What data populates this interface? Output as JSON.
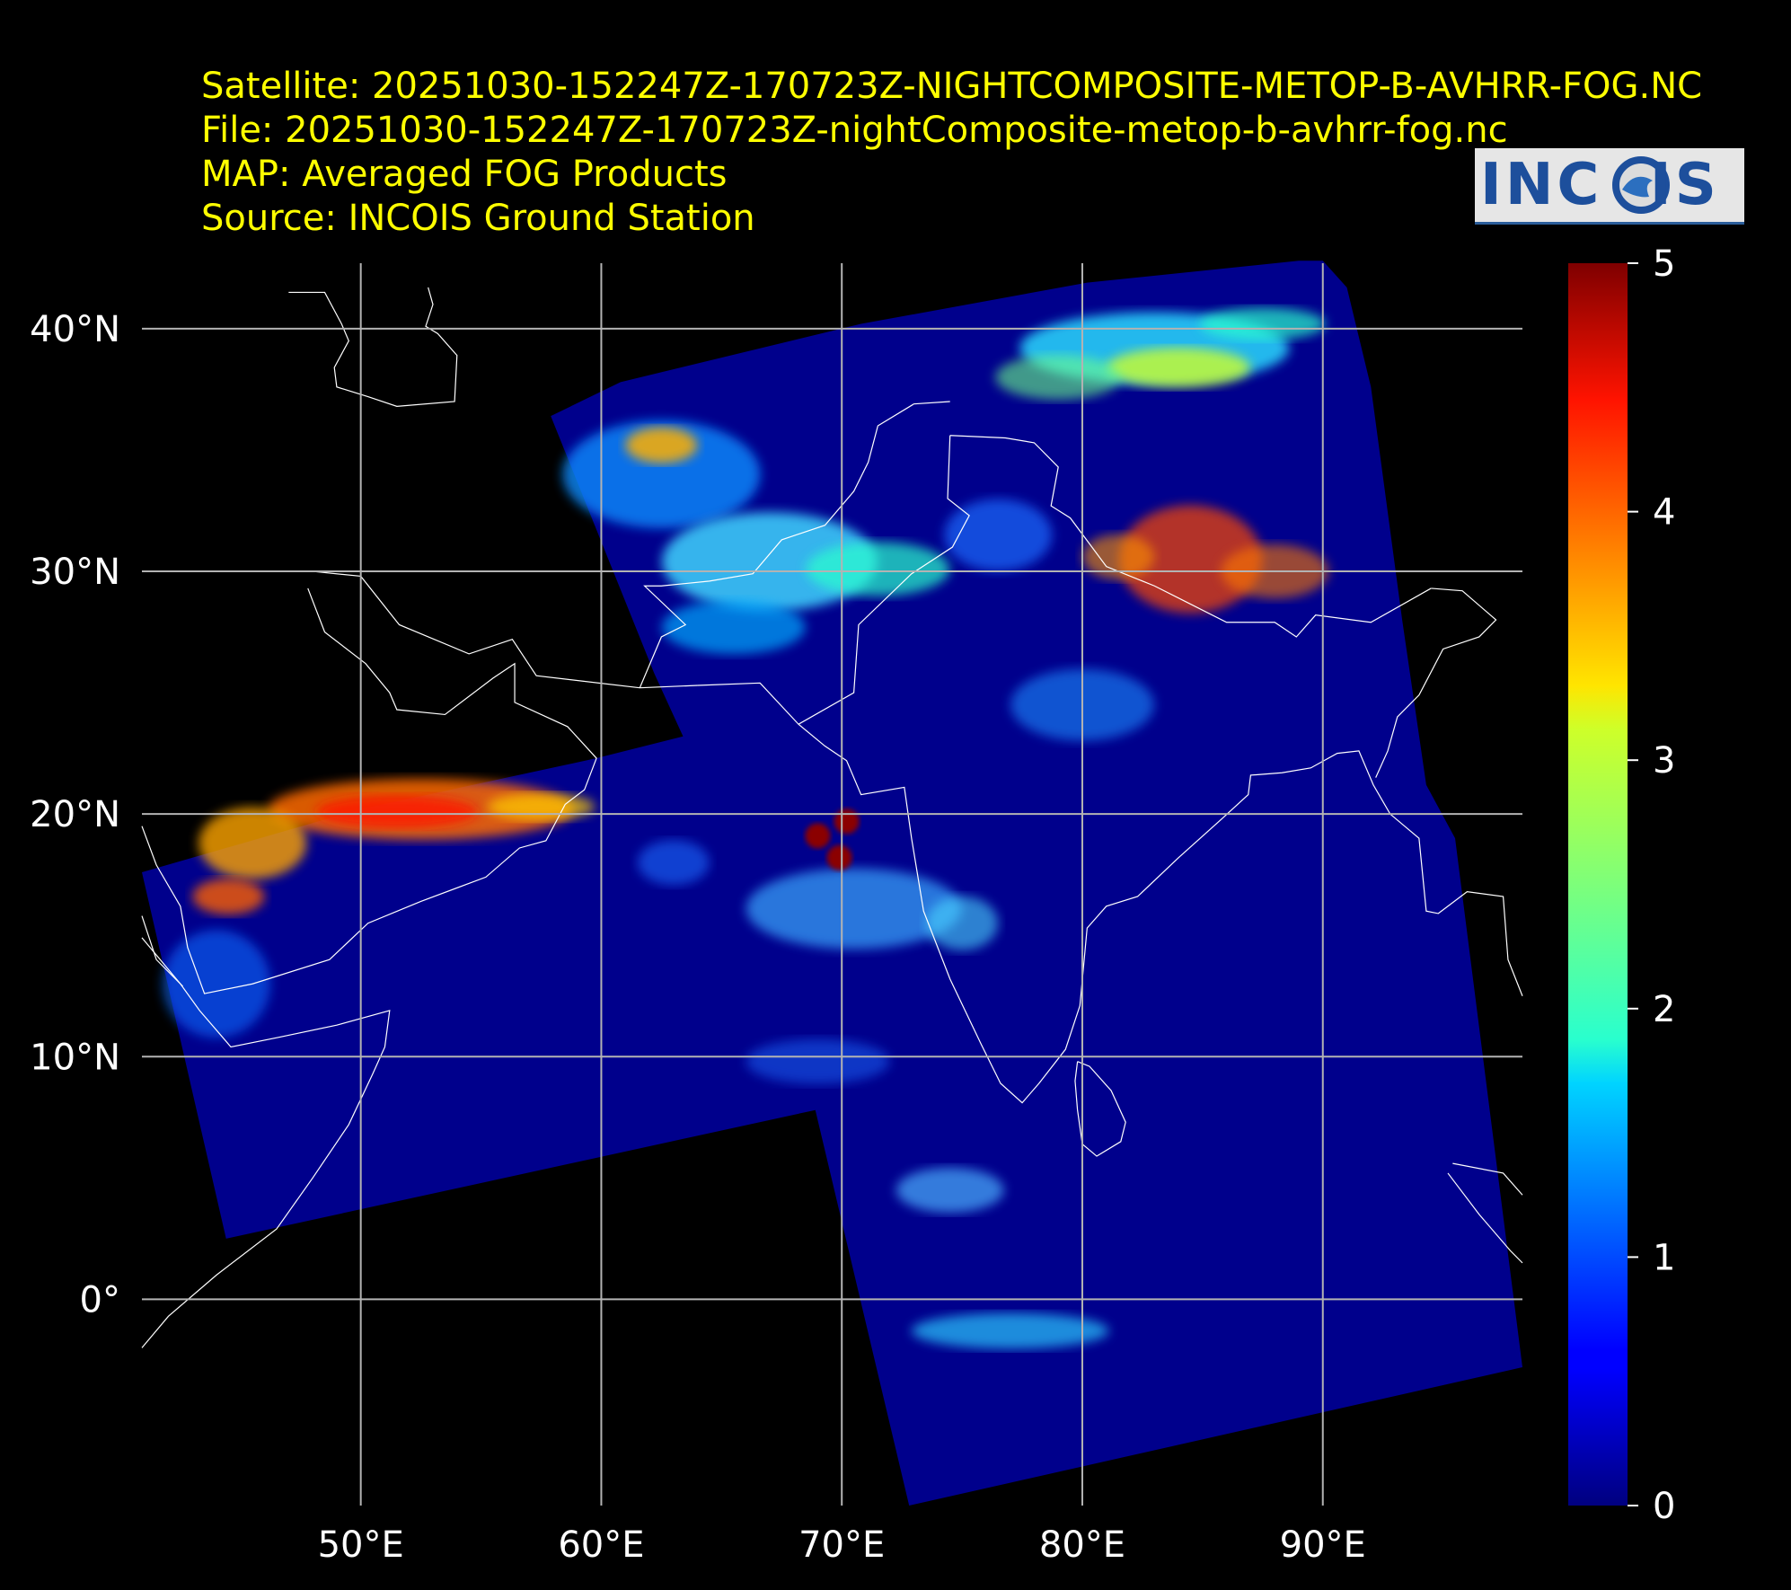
{
  "header": {
    "satellite": "Satellite: 20251030-152247Z-170723Z-NIGHTCOMPOSITE-METOP-B-AVHRR-FOG.NC",
    "file": "File: 20251030-152247Z-170723Z-nightComposite-metop-b-avhrr-fog.nc",
    "map": "MAP: Averaged FOG Products",
    "source": "Source: INCOIS Ground Station"
  },
  "logo": {
    "text": "INCOIS"
  },
  "map": {
    "lat_ticks": [
      40,
      30,
      20,
      10,
      0
    ],
    "lat_tick_labels": [
      "40°N",
      "30°N",
      "20°N",
      "10°N",
      "0°"
    ],
    "lon_ticks": [
      50,
      60,
      70,
      80,
      90
    ],
    "lon_tick_labels": [
      "50°E",
      "60°E",
      "70°E",
      "80°E",
      "90°E"
    ],
    "extent": {
      "lon": [
        40.9,
        98.3
      ],
      "lat": [
        -8.5,
        42.7
      ]
    },
    "background": "#000000",
    "no_data_color": "#000000",
    "data_base_color": "#00008c",
    "coastline_color": "#ffffff",
    "gridline_color": "#b3b3b3",
    "colormap": "jet"
  },
  "colorbar": {
    "ticks": [
      0,
      1,
      2,
      3,
      4,
      5
    ],
    "tick_labels": [
      "0",
      "1",
      "2",
      "3",
      "4",
      "5"
    ],
    "range": [
      0,
      5
    ]
  }
}
